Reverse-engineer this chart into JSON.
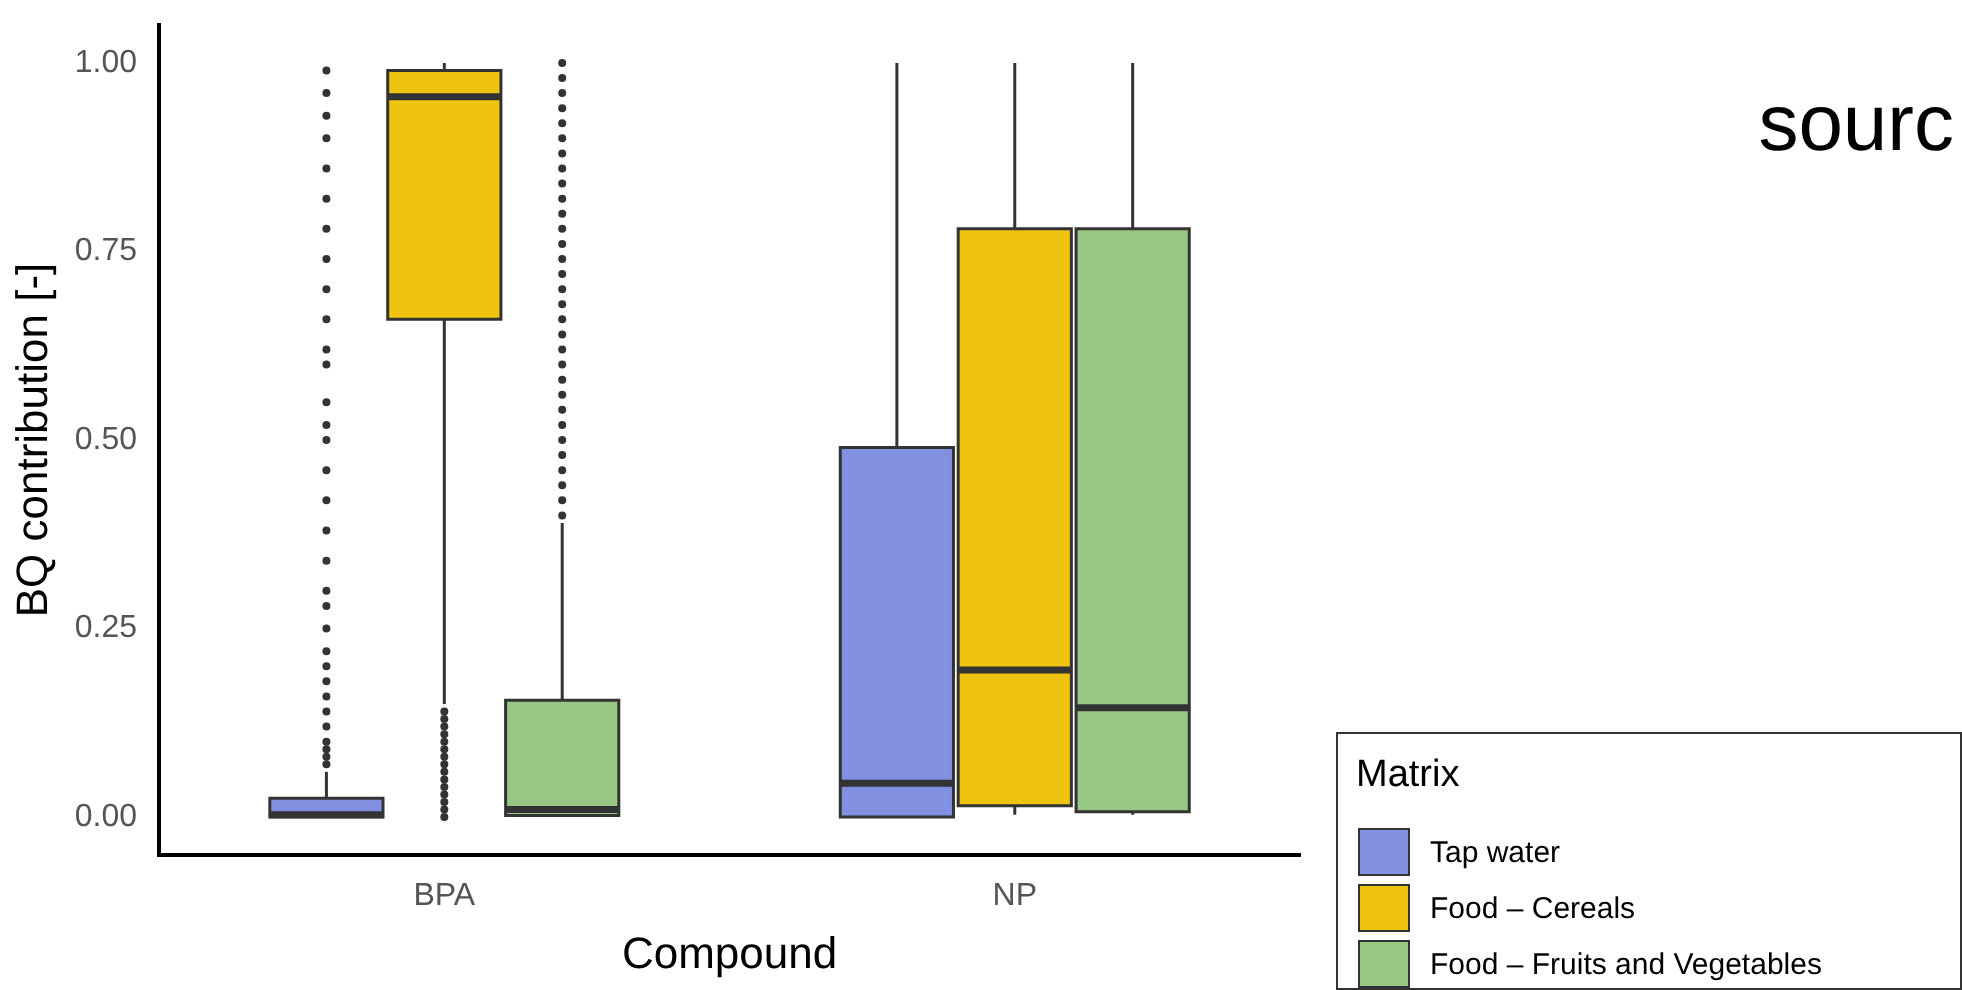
{
  "chart_data": {
    "type": "box",
    "xlabel": "Compound",
    "ylabel": "BQ contribution [-]",
    "legend_title": "Matrix",
    "legend": "bottom right",
    "annotations": [
      "sourc"
    ],
    "categories": [
      "BPA",
      "NP"
    ],
    "ylim": [
      -0.05,
      1.05
    ],
    "yticks": [
      {
        "value": 0,
        "label": "0.00"
      },
      {
        "value": 0.25,
        "label": "0.25"
      },
      {
        "value": 0.5,
        "label": "0.50"
      },
      {
        "value": 0.75,
        "label": "0.75"
      },
      {
        "value": 1,
        "label": "1.00"
      }
    ],
    "series": [
      {
        "name": "Tap water",
        "color": "#8190e0",
        "boxes": [
          {
            "low": 0,
            "q1": 0,
            "median": 0.003,
            "q3": 0.025,
            "high": 0.06,
            "outliers": [
              0.07,
              0.08,
              0.09,
              0.1,
              0.12,
              0.14,
              0.16,
              0.18,
              0.2,
              0.22,
              0.25,
              0.28,
              0.3,
              0.34,
              0.38,
              0.42,
              0.46,
              0.5,
              0.52,
              0.55,
              0.6,
              0.62,
              0.66,
              0.7,
              0.74,
              0.78,
              0.82,
              0.86,
              0.9,
              0.93,
              0.96,
              0.99
            ]
          },
          {
            "low": 0,
            "q1": 0,
            "median": 0.045,
            "q3": 0.49,
            "high": 1
          }
        ]
      },
      {
        "name": "Food – Cereals",
        "color": "#efc410",
        "boxes": [
          {
            "low": 0.15,
            "q1": 0.66,
            "median": 0.955,
            "q3": 0.99,
            "high": 1,
            "outliers": [
              0,
              0.01,
              0.02,
              0.03,
              0.04,
              0.05,
              0.06,
              0.07,
              0.08,
              0.09,
              0.1,
              0.11,
              0.12,
              0.13,
              0.14
            ]
          },
          {
            "low": 0.003,
            "q1": 0.015,
            "median": 0.195,
            "q3": 0.78,
            "high": 1
          }
        ]
      },
      {
        "name": "Food – Fruits and Vegetables",
        "color": "#98c683",
        "boxes": [
          {
            "low": 0,
            "q1": 0.002,
            "median": 0.01,
            "q3": 0.155,
            "high": 0.39,
            "outliers": [
              0.4,
              0.42,
              0.44,
              0.46,
              0.48,
              0.5,
              0.52,
              0.54,
              0.56,
              0.58,
              0.6,
              0.62,
              0.64,
              0.66,
              0.68,
              0.7,
              0.72,
              0.74,
              0.76,
              0.78,
              0.8,
              0.82,
              0.84,
              0.86,
              0.88,
              0.9,
              0.92,
              0.94,
              0.96,
              0.98,
              1
            ]
          },
          {
            "low": 0.003,
            "q1": 0.007,
            "median": 0.145,
            "q3": 0.78,
            "high": 1
          }
        ]
      }
    ]
  }
}
